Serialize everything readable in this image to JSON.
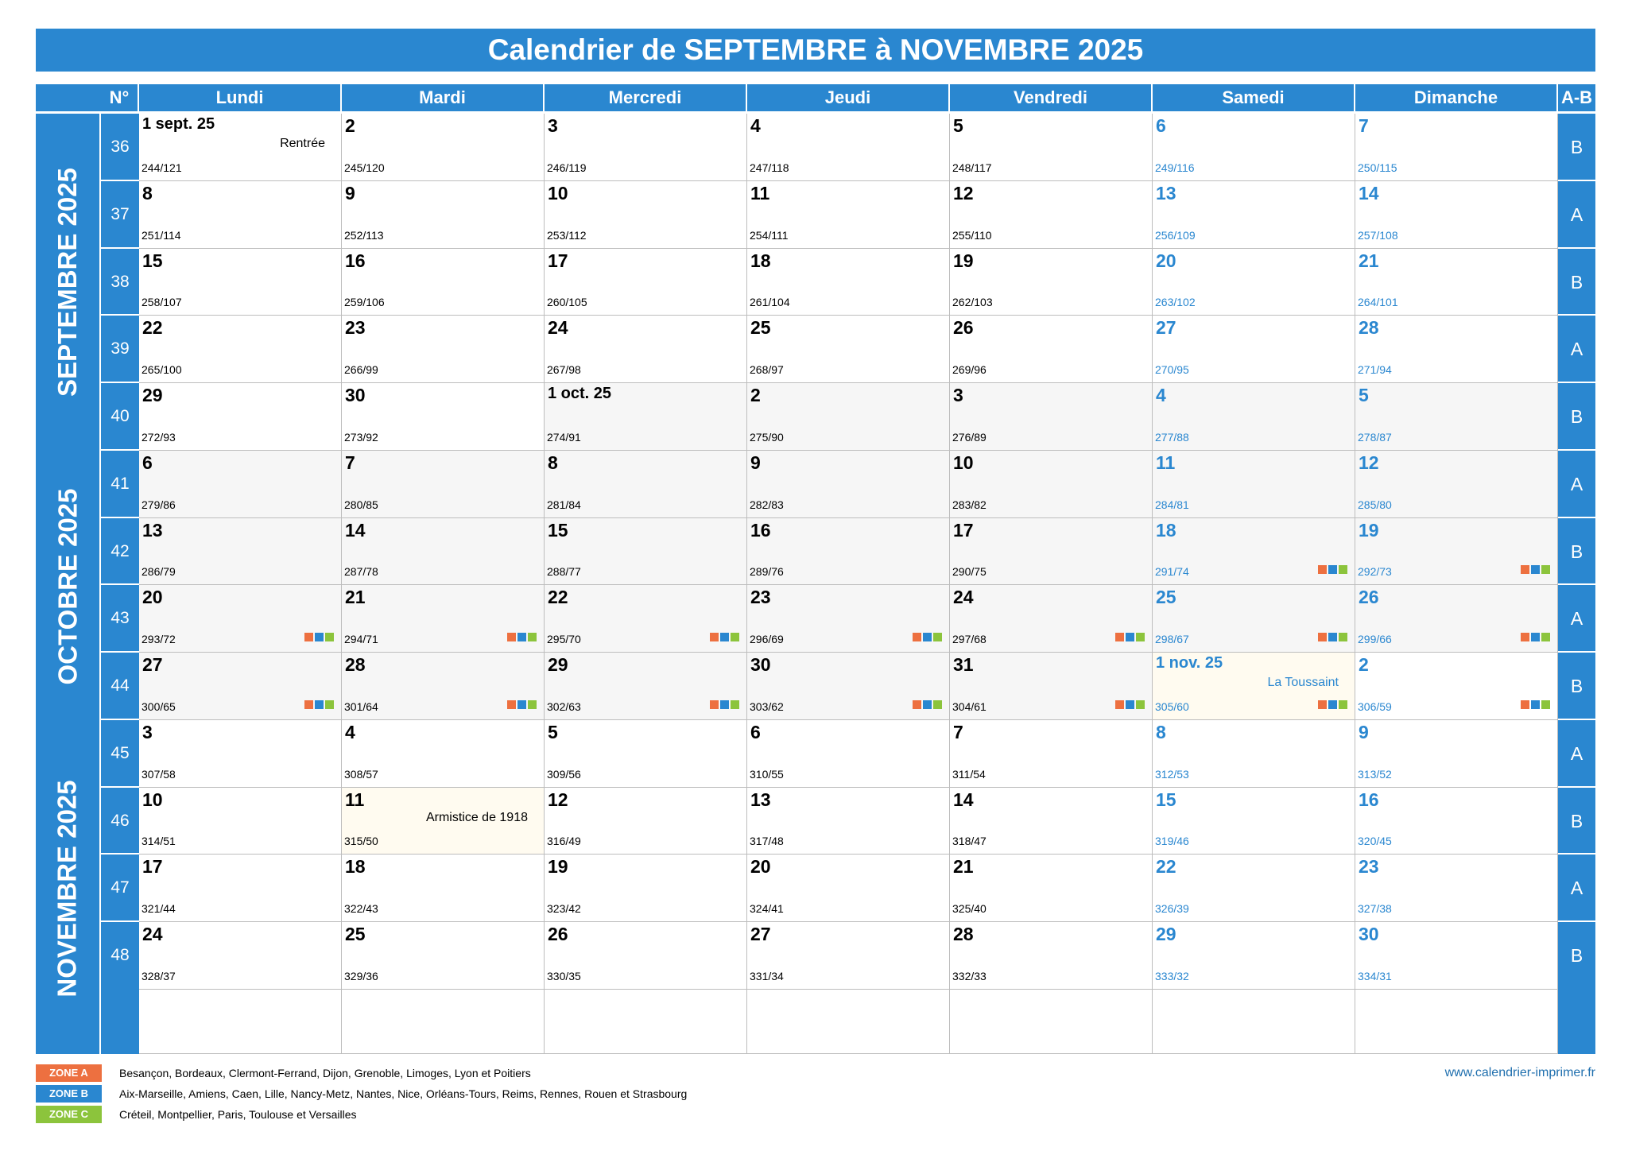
{
  "title": "Calendrier de SEPTEMBRE à NOVEMBRE 2025",
  "header": {
    "week_no": "N°",
    "days": [
      "Lundi",
      "Mardi",
      "Mercredi",
      "Jeudi",
      "Vendredi",
      "Samedi",
      "Dimanche"
    ],
    "ab": "A-B"
  },
  "months": [
    "SEPTEMBRE 2025",
    "OCTOBRE 2025",
    "NOVEMBRE 2025"
  ],
  "weeks": [
    {
      "no": "36",
      "ab": "B",
      "days": [
        {
          "d": "1 sept. 25",
          "n": "244/121",
          "ev": "Rentrée",
          "m": "s"
        },
        {
          "d": "2",
          "n": "245/120",
          "m": "s"
        },
        {
          "d": "3",
          "n": "246/119",
          "m": "s"
        },
        {
          "d": "4",
          "n": "247/118",
          "m": "s"
        },
        {
          "d": "5",
          "n": "248/117",
          "m": "s"
        },
        {
          "d": "6",
          "n": "249/116",
          "m": "s"
        },
        {
          "d": "7",
          "n": "250/115",
          "m": "s"
        }
      ]
    },
    {
      "no": "37",
      "ab": "A",
      "days": [
        {
          "d": "8",
          "n": "251/114",
          "m": "s"
        },
        {
          "d": "9",
          "n": "252/113",
          "m": "s"
        },
        {
          "d": "10",
          "n": "253/112",
          "m": "s"
        },
        {
          "d": "11",
          "n": "254/111",
          "m": "s"
        },
        {
          "d": "12",
          "n": "255/110",
          "m": "s"
        },
        {
          "d": "13",
          "n": "256/109",
          "m": "s"
        },
        {
          "d": "14",
          "n": "257/108",
          "m": "s"
        }
      ]
    },
    {
      "no": "38",
      "ab": "B",
      "days": [
        {
          "d": "15",
          "n": "258/107",
          "m": "s"
        },
        {
          "d": "16",
          "n": "259/106",
          "m": "s"
        },
        {
          "d": "17",
          "n": "260/105",
          "m": "s"
        },
        {
          "d": "18",
          "n": "261/104",
          "m": "s"
        },
        {
          "d": "19",
          "n": "262/103",
          "m": "s"
        },
        {
          "d": "20",
          "n": "263/102",
          "m": "s"
        },
        {
          "d": "21",
          "n": "264/101",
          "m": "s"
        }
      ]
    },
    {
      "no": "39",
      "ab": "A",
      "days": [
        {
          "d": "22",
          "n": "265/100",
          "m": "s"
        },
        {
          "d": "23",
          "n": "266/99",
          "m": "s"
        },
        {
          "d": "24",
          "n": "267/98",
          "m": "s"
        },
        {
          "d": "25",
          "n": "268/97",
          "m": "s"
        },
        {
          "d": "26",
          "n": "269/96",
          "m": "s"
        },
        {
          "d": "27",
          "n": "270/95",
          "m": "s"
        },
        {
          "d": "28",
          "n": "271/94",
          "m": "s"
        }
      ]
    },
    {
      "no": "40",
      "ab": "B",
      "days": [
        {
          "d": "29",
          "n": "272/93",
          "m": "s"
        },
        {
          "d": "30",
          "n": "273/92",
          "m": "s"
        },
        {
          "d": "1 oct. 25",
          "n": "274/91",
          "m": "o"
        },
        {
          "d": "2",
          "n": "275/90",
          "m": "o"
        },
        {
          "d": "3",
          "n": "276/89",
          "m": "o"
        },
        {
          "d": "4",
          "n": "277/88",
          "m": "o"
        },
        {
          "d": "5",
          "n": "278/87",
          "m": "o"
        }
      ]
    },
    {
      "no": "41",
      "ab": "A",
      "days": [
        {
          "d": "6",
          "n": "279/86",
          "m": "o"
        },
        {
          "d": "7",
          "n": "280/85",
          "m": "o"
        },
        {
          "d": "8",
          "n": "281/84",
          "m": "o"
        },
        {
          "d": "9",
          "n": "282/83",
          "m": "o"
        },
        {
          "d": "10",
          "n": "283/82",
          "m": "o"
        },
        {
          "d": "11",
          "n": "284/81",
          "m": "o"
        },
        {
          "d": "12",
          "n": "285/80",
          "m": "o"
        }
      ]
    },
    {
      "no": "42",
      "ab": "B",
      "days": [
        {
          "d": "13",
          "n": "286/79",
          "m": "o"
        },
        {
          "d": "14",
          "n": "287/78",
          "m": "o"
        },
        {
          "d": "15",
          "n": "288/77",
          "m": "o"
        },
        {
          "d": "16",
          "n": "289/76",
          "m": "o"
        },
        {
          "d": "17",
          "n": "290/75",
          "m": "o"
        },
        {
          "d": "18",
          "n": "291/74",
          "m": "o",
          "vac": true
        },
        {
          "d": "19",
          "n": "292/73",
          "m": "o",
          "vac": true
        }
      ]
    },
    {
      "no": "43",
      "ab": "A",
      "days": [
        {
          "d": "20",
          "n": "293/72",
          "m": "o",
          "vac": true
        },
        {
          "d": "21",
          "n": "294/71",
          "m": "o",
          "vac": true
        },
        {
          "d": "22",
          "n": "295/70",
          "m": "o",
          "vac": true
        },
        {
          "d": "23",
          "n": "296/69",
          "m": "o",
          "vac": true
        },
        {
          "d": "24",
          "n": "297/68",
          "m": "o",
          "vac": true
        },
        {
          "d": "25",
          "n": "298/67",
          "m": "o",
          "vac": true
        },
        {
          "d": "26",
          "n": "299/66",
          "m": "o",
          "vac": true
        }
      ]
    },
    {
      "no": "44",
      "ab": "B",
      "days": [
        {
          "d": "27",
          "n": "300/65",
          "m": "o",
          "vac": true
        },
        {
          "d": "28",
          "n": "301/64",
          "m": "o",
          "vac": true
        },
        {
          "d": "29",
          "n": "302/63",
          "m": "o",
          "vac": true
        },
        {
          "d": "30",
          "n": "303/62",
          "m": "o",
          "vac": true
        },
        {
          "d": "31",
          "n": "304/61",
          "m": "o",
          "vac": true
        },
        {
          "d": "1 nov. 25",
          "n": "305/60",
          "ev": "La Toussaint",
          "m": "n",
          "vac": true,
          "hol": true
        },
        {
          "d": "2",
          "n": "306/59",
          "m": "n",
          "vac": true
        }
      ]
    },
    {
      "no": "45",
      "ab": "A",
      "days": [
        {
          "d": "3",
          "n": "307/58",
          "m": "n"
        },
        {
          "d": "4",
          "n": "308/57",
          "m": "n"
        },
        {
          "d": "5",
          "n": "309/56",
          "m": "n"
        },
        {
          "d": "6",
          "n": "310/55",
          "m": "n"
        },
        {
          "d": "7",
          "n": "311/54",
          "m": "n"
        },
        {
          "d": "8",
          "n": "312/53",
          "m": "n"
        },
        {
          "d": "9",
          "n": "313/52",
          "m": "n"
        }
      ]
    },
    {
      "no": "46",
      "ab": "B",
      "days": [
        {
          "d": "10",
          "n": "314/51",
          "m": "n"
        },
        {
          "d": "11",
          "n": "315/50",
          "ev": "Armistice de 1918",
          "m": "n",
          "hol": true
        },
        {
          "d": "12",
          "n": "316/49",
          "m": "n"
        },
        {
          "d": "13",
          "n": "317/48",
          "m": "n"
        },
        {
          "d": "14",
          "n": "318/47",
          "m": "n"
        },
        {
          "d": "15",
          "n": "319/46",
          "m": "n"
        },
        {
          "d": "16",
          "n": "320/45",
          "m": "n"
        }
      ]
    },
    {
      "no": "47",
      "ab": "A",
      "days": [
        {
          "d": "17",
          "n": "321/44",
          "m": "n"
        },
        {
          "d": "18",
          "n": "322/43",
          "m": "n"
        },
        {
          "d": "19",
          "n": "323/42",
          "m": "n"
        },
        {
          "d": "20",
          "n": "324/41",
          "m": "n"
        },
        {
          "d": "21",
          "n": "325/40",
          "m": "n"
        },
        {
          "d": "22",
          "n": "326/39",
          "m": "n"
        },
        {
          "d": "23",
          "n": "327/38",
          "m": "n"
        }
      ]
    },
    {
      "no": "48",
      "ab": "B",
      "days": [
        {
          "d": "24",
          "n": "328/37",
          "m": "n"
        },
        {
          "d": "25",
          "n": "329/36",
          "m": "n"
        },
        {
          "d": "26",
          "n": "330/35",
          "m": "n"
        },
        {
          "d": "27",
          "n": "331/34",
          "m": "n"
        },
        {
          "d": "28",
          "n": "332/33",
          "m": "n"
        },
        {
          "d": "29",
          "n": "333/32",
          "m": "n"
        },
        {
          "d": "30",
          "n": "334/31",
          "m": "n"
        }
      ]
    }
  ],
  "legend": [
    {
      "zone": "ZONE A",
      "color": "#ed7040",
      "desc": "Besançon, Bordeaux, Clermont-Ferrand, Dijon, Grenoble, Limoges, Lyon et Poitiers"
    },
    {
      "zone": "ZONE B",
      "color": "#2a87d0",
      "desc": "Aix-Marseille, Amiens, Caen, Lille, Nancy-Metz, Nantes, Nice, Orléans-Tours, Reims, Rennes, Rouen et Strasbourg"
    },
    {
      "zone": "ZONE C",
      "color": "#8cc43c",
      "desc": "Créteil, Montpellier, Paris, Toulouse et Versailles"
    }
  ],
  "colors": {
    "accent": "#2a87d0",
    "weekend_text": "#2a87d0",
    "october_bg": "#f6f6f6",
    "holiday_bg": "#fffbf0"
  },
  "website": "www.calendrier-imprimer.fr"
}
